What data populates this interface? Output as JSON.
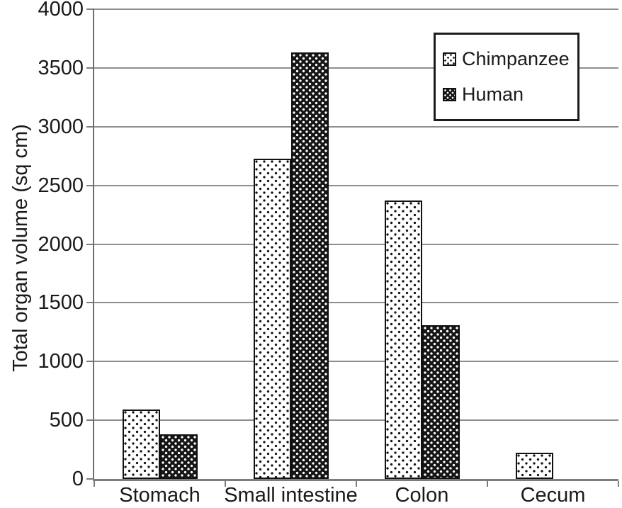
{
  "chart_data": {
    "type": "bar",
    "title": "",
    "xlabel": "",
    "ylabel": "Total organ volume (sq cm)",
    "categories": [
      "Stomach",
      "Small intestine",
      "Colon",
      "Cecum"
    ],
    "series": [
      {
        "name": "Chimpanzee",
        "pattern": "light-dots",
        "values": [
          590,
          2730,
          2370,
          225
        ]
      },
      {
        "name": "Human",
        "pattern": "dark-dots",
        "values": [
          380,
          3630,
          1310,
          0
        ]
      }
    ],
    "ylim": [
      0,
      4000
    ],
    "yticks": [
      0,
      500,
      1000,
      1500,
      2000,
      2500,
      3000,
      3500,
      4000
    ],
    "grid": "horizontal",
    "legend_position": "top-right",
    "colors": {
      "light_bar_fill": "#ffffff",
      "light_bar_dots": "#141414",
      "dark_bar_fill": "#161616",
      "dark_bar_dots": "#ffffff",
      "gridline": "#8e8e8e",
      "axis": "#7d7d7d",
      "text": "#1a1a1a"
    }
  }
}
